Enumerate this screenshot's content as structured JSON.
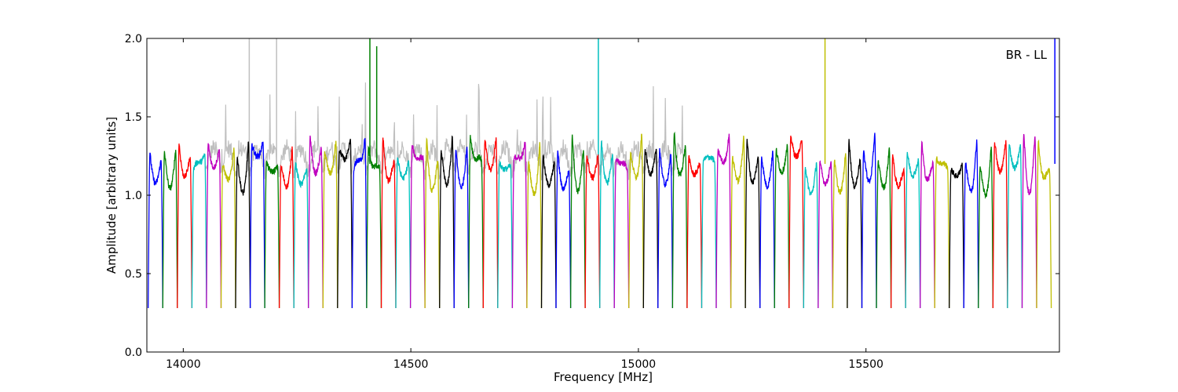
{
  "chart_data": {
    "type": "line",
    "title": "",
    "xlabel": "Frequency [MHz]",
    "ylabel": "Amplitude [arbitrary units]",
    "xlim": [
      13920,
      15925
    ],
    "ylim": [
      0,
      2.0
    ],
    "x_ticks": [
      14000,
      14500,
      15000,
      15500
    ],
    "x_tick_labels": [
      "14000",
      "14500",
      "15000",
      "15500"
    ],
    "y_ticks": [
      0.0,
      0.5,
      1.0,
      1.5,
      2.0
    ],
    "y_tick_labels": [
      "0.0",
      "0.5",
      "1.0",
      "1.5",
      "2.0"
    ],
    "grid": false,
    "annotation": "BR - LL",
    "annotation_position": "top-right",
    "subband_width_mhz": 32,
    "first_subband_start_mhz": 13923,
    "subband_count": 62,
    "subband_peak": 1.35,
    "subband_edge_min": 0.28,
    "subband_center_level": 1.15,
    "color_cycle": [
      "#0000ff",
      "#008000",
      "#ff0000",
      "#00bfbf",
      "#bf00bf",
      "#bfbf00",
      "#000000"
    ],
    "background_trace_color": "#bfbfbf",
    "background_trace_range_mhz": [
      14050,
      15100
    ],
    "rfi_spikes": [
      {
        "x": 14145,
        "y": 2.0,
        "color": "#bfbfbf"
      },
      {
        "x": 14205,
        "y": 2.0,
        "color": "#bfbfbf"
      },
      {
        "x": 14410,
        "y": 2.0,
        "color": "#008000"
      },
      {
        "x": 14425,
        "y": 1.95,
        "color": "#008000"
      },
      {
        "x": 14912,
        "y": 2.0,
        "color": "#00bfbf"
      },
      {
        "x": 15410,
        "y": 2.0,
        "color": "#bfbf00"
      },
      {
        "x": 15915,
        "y": 2.0,
        "color": "#0000ff"
      }
    ]
  }
}
